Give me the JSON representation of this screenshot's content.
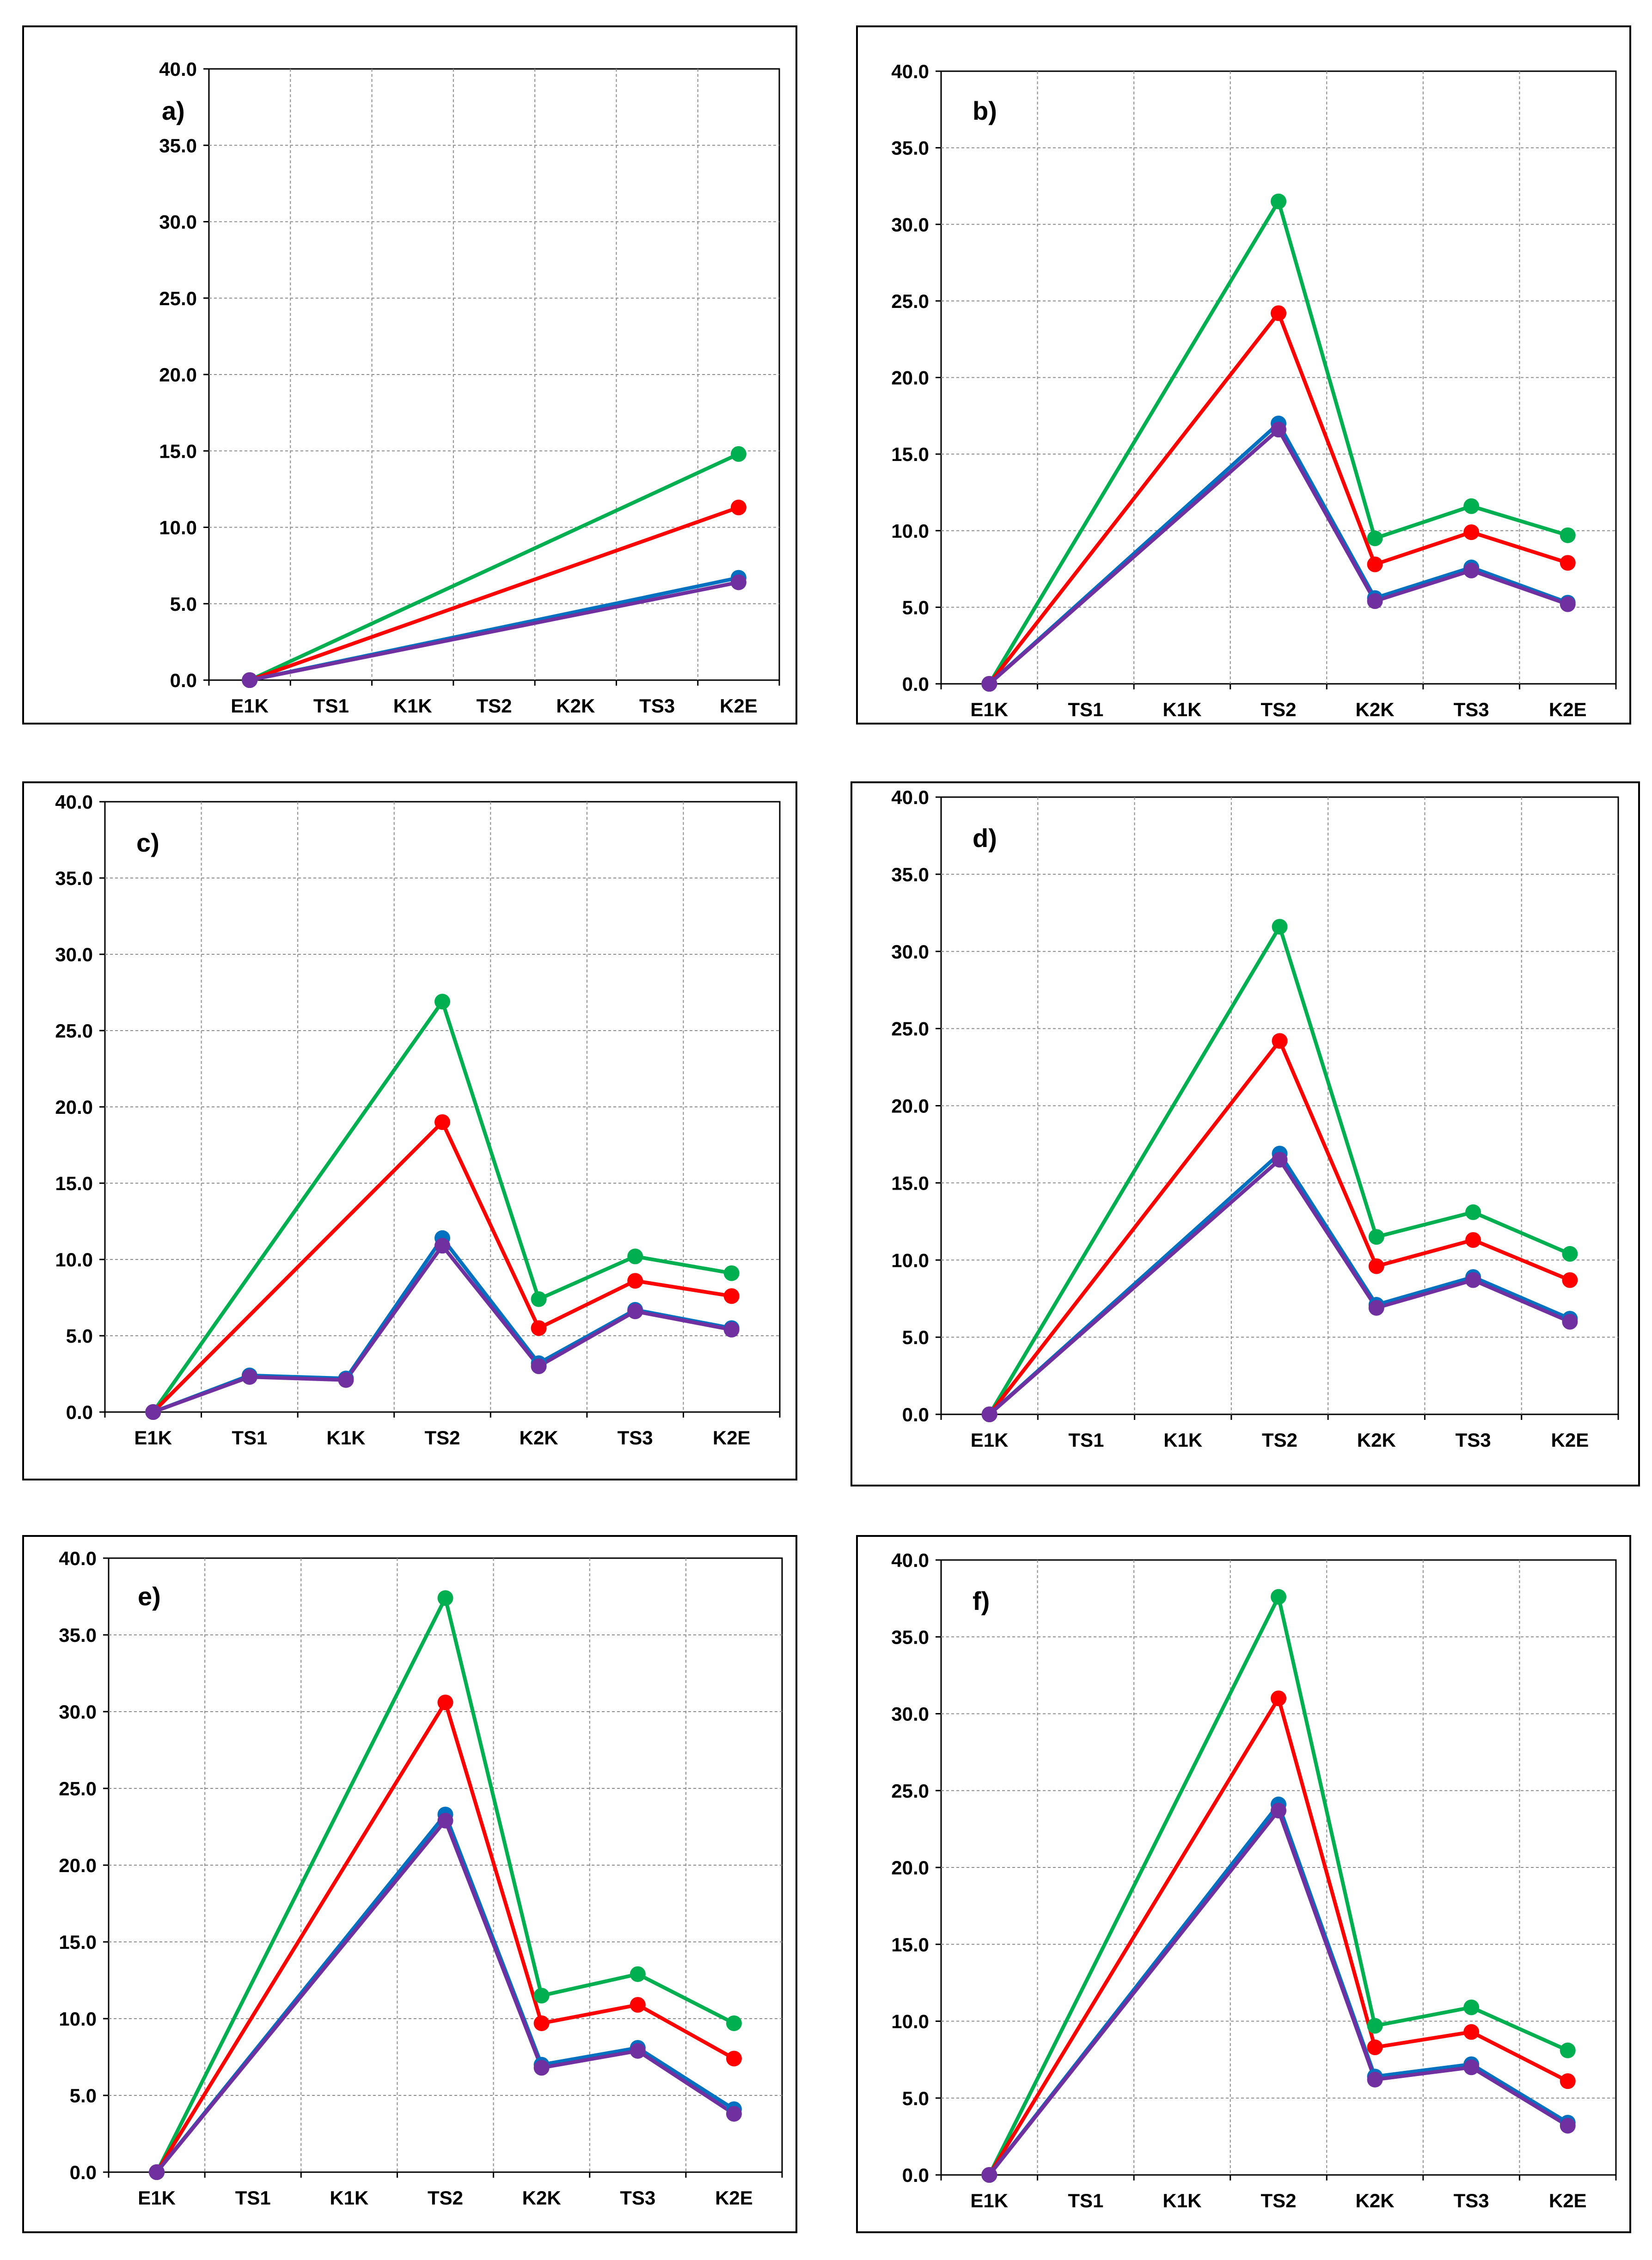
{
  "chart_data": [
    {
      "type": "line",
      "title": "a)",
      "categories": [
        "E1K",
        "TS1",
        "K1K",
        "TS2",
        "K2K",
        "TS3",
        "K2E"
      ],
      "ylim": [
        0,
        40
      ],
      "yticks": [
        "0.0",
        "5.0",
        "10.0",
        "15.0",
        "20.0",
        "25.0",
        "30.0",
        "35.0",
        "40.0"
      ],
      "grid": true,
      "series": [
        {
          "name": "green",
          "color": "#00b050",
          "points": [
            [
              0,
              0
            ],
            [
              6,
              14.8
            ]
          ]
        },
        {
          "name": "red",
          "color": "#ff0000",
          "points": [
            [
              0,
              0
            ],
            [
              6,
              11.3
            ]
          ]
        },
        {
          "name": "blue",
          "color": "#0070c0",
          "points": [
            [
              0,
              0
            ],
            [
              6,
              6.7
            ]
          ]
        },
        {
          "name": "purple",
          "color": "#7030a0",
          "points": [
            [
              0,
              0
            ],
            [
              6,
              6.4
            ]
          ]
        }
      ]
    },
    {
      "type": "line",
      "title": "b)",
      "categories": [
        "E1K",
        "TS1",
        "K1K",
        "TS2",
        "K2K",
        "TS3",
        "K2E"
      ],
      "ylim": [
        0,
        40
      ],
      "yticks": [
        "0.0",
        "5.0",
        "10.0",
        "15.0",
        "20.0",
        "25.0",
        "30.0",
        "35.0",
        "40.0"
      ],
      "grid": true,
      "series": [
        {
          "name": "green",
          "color": "#00b050",
          "points": [
            [
              0,
              0
            ],
            [
              3,
              31.5
            ],
            [
              4,
              9.5
            ],
            [
              5,
              11.6
            ],
            [
              6,
              9.7
            ]
          ]
        },
        {
          "name": "red",
          "color": "#ff0000",
          "points": [
            [
              0,
              0
            ],
            [
              3,
              24.2
            ],
            [
              4,
              7.8
            ],
            [
              5,
              9.9
            ],
            [
              6,
              7.9
            ]
          ]
        },
        {
          "name": "blue",
          "color": "#0070c0",
          "points": [
            [
              0,
              0
            ],
            [
              3,
              17.0
            ],
            [
              4,
              5.6
            ],
            [
              5,
              7.6
            ],
            [
              6,
              5.3
            ]
          ]
        },
        {
          "name": "purple",
          "color": "#7030a0",
          "points": [
            [
              0,
              0
            ],
            [
              3,
              16.6
            ],
            [
              4,
              5.4
            ],
            [
              5,
              7.4
            ],
            [
              6,
              5.2
            ]
          ]
        }
      ]
    },
    {
      "type": "line",
      "title": "c)",
      "categories": [
        "E1K",
        "TS1",
        "K1K",
        "TS2",
        "K2K",
        "TS3",
        "K2E"
      ],
      "ylim": [
        0,
        40
      ],
      "yticks": [
        "0.0",
        "5.0",
        "10.0",
        "15.0",
        "20.0",
        "25.0",
        "30.0",
        "35.0",
        "40.0"
      ],
      "grid": true,
      "series": [
        {
          "name": "green",
          "color": "#00b050",
          "points": [
            [
              0,
              0
            ],
            [
              3,
              26.9
            ],
            [
              4,
              7.4
            ],
            [
              5,
              10.2
            ],
            [
              6,
              9.1
            ]
          ]
        },
        {
          "name": "red",
          "color": "#ff0000",
          "points": [
            [
              0,
              0
            ],
            [
              3,
              19.0
            ],
            [
              4,
              5.5
            ],
            [
              5,
              8.6
            ],
            [
              6,
              7.6
            ]
          ]
        },
        {
          "name": "blue",
          "color": "#0070c0",
          "points": [
            [
              0,
              0
            ],
            [
              1,
              2.4
            ],
            [
              2,
              2.2
            ],
            [
              3,
              11.4
            ],
            [
              4,
              3.2
            ],
            [
              5,
              6.7
            ],
            [
              6,
              5.5
            ]
          ]
        },
        {
          "name": "purple",
          "color": "#7030a0",
          "points": [
            [
              0,
              0
            ],
            [
              1,
              2.3
            ],
            [
              2,
              2.1
            ],
            [
              3,
              10.9
            ],
            [
              4,
              3.0
            ],
            [
              5,
              6.6
            ],
            [
              6,
              5.4
            ]
          ]
        }
      ]
    },
    {
      "type": "line",
      "title": "d)",
      "categories": [
        "E1K",
        "TS1",
        "K1K",
        "TS2",
        "K2K",
        "TS3",
        "K2E"
      ],
      "ylim": [
        0,
        40
      ],
      "yticks": [
        "0.0",
        "5.0",
        "10.0",
        "15.0",
        "20.0",
        "25.0",
        "30.0",
        "35.0",
        "40.0"
      ],
      "grid": true,
      "series": [
        {
          "name": "green",
          "color": "#00b050",
          "points": [
            [
              0,
              0
            ],
            [
              3,
              31.6
            ],
            [
              4,
              11.5
            ],
            [
              5,
              13.1
            ],
            [
              6,
              10.4
            ]
          ]
        },
        {
          "name": "red",
          "color": "#ff0000",
          "points": [
            [
              0,
              0
            ],
            [
              3,
              24.2
            ],
            [
              4,
              9.6
            ],
            [
              5,
              11.3
            ],
            [
              6,
              8.7
            ]
          ]
        },
        {
          "name": "blue",
          "color": "#0070c0",
          "points": [
            [
              0,
              0
            ],
            [
              3,
              16.9
            ],
            [
              4,
              7.1
            ],
            [
              5,
              8.9
            ],
            [
              6,
              6.2
            ]
          ]
        },
        {
          "name": "purple",
          "color": "#7030a0",
          "points": [
            [
              0,
              0
            ],
            [
              3,
              16.5
            ],
            [
              4,
              6.9
            ],
            [
              5,
              8.7
            ],
            [
              6,
              6.0
            ]
          ]
        }
      ]
    },
    {
      "type": "line",
      "title": "e)",
      "categories": [
        "E1K",
        "TS1",
        "K1K",
        "TS2",
        "K2K",
        "TS3",
        "K2E"
      ],
      "ylim": [
        0,
        40
      ],
      "yticks": [
        "0.0",
        "5.0",
        "10.0",
        "15.0",
        "20.0",
        "25.0",
        "30.0",
        "35.0",
        "40.0"
      ],
      "grid": true,
      "series": [
        {
          "name": "green",
          "color": "#00b050",
          "points": [
            [
              0,
              0
            ],
            [
              3,
              37.4
            ],
            [
              4,
              11.5
            ],
            [
              5,
              12.9
            ],
            [
              6,
              9.7
            ]
          ]
        },
        {
          "name": "red",
          "color": "#ff0000",
          "points": [
            [
              0,
              0
            ],
            [
              3,
              30.6
            ],
            [
              4,
              9.7
            ],
            [
              5,
              10.9
            ],
            [
              6,
              7.4
            ]
          ]
        },
        {
          "name": "blue",
          "color": "#0070c0",
          "points": [
            [
              0,
              0
            ],
            [
              3,
              23.3
            ],
            [
              4,
              7.0
            ],
            [
              5,
              8.1
            ],
            [
              6,
              4.1
            ]
          ]
        },
        {
          "name": "purple",
          "color": "#7030a0",
          "points": [
            [
              0,
              0
            ],
            [
              3,
              22.9
            ],
            [
              4,
              6.8
            ],
            [
              5,
              7.9
            ],
            [
              6,
              3.8
            ]
          ]
        }
      ]
    },
    {
      "type": "line",
      "title": "f)",
      "categories": [
        "E1K",
        "TS1",
        "K1K",
        "TS2",
        "K2K",
        "TS3",
        "K2E"
      ],
      "ylim": [
        0,
        40
      ],
      "yticks": [
        "0.0",
        "5.0",
        "10.0",
        "15.0",
        "20.0",
        "25.0",
        "30.0",
        "35.0",
        "40.0"
      ],
      "grid": true,
      "series": [
        {
          "name": "green",
          "color": "#00b050",
          "points": [
            [
              0,
              0
            ],
            [
              3,
              37.6
            ],
            [
              4,
              9.7
            ],
            [
              5,
              10.9
            ],
            [
              6,
              8.1
            ]
          ]
        },
        {
          "name": "red",
          "color": "#ff0000",
          "points": [
            [
              0,
              0
            ],
            [
              3,
              31.0
            ],
            [
              4,
              8.3
            ],
            [
              5,
              9.3
            ],
            [
              6,
              6.1
            ]
          ]
        },
        {
          "name": "blue",
          "color": "#0070c0",
          "points": [
            [
              0,
              0
            ],
            [
              3,
              24.1
            ],
            [
              4,
              6.4
            ],
            [
              5,
              7.2
            ],
            [
              6,
              3.4
            ]
          ]
        },
        {
          "name": "purple",
          "color": "#7030a0",
          "points": [
            [
              0,
              0
            ],
            [
              3,
              23.7
            ],
            [
              4,
              6.2
            ],
            [
              5,
              7.0
            ],
            [
              6,
              3.2
            ]
          ]
        }
      ]
    }
  ]
}
